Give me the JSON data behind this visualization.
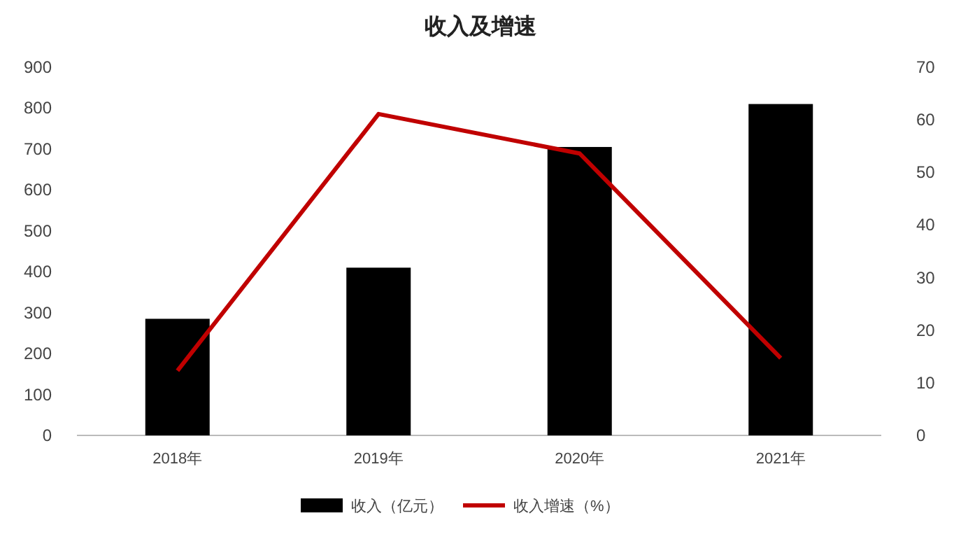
{
  "chart_data": {
    "type": "bar",
    "title": "收入及增速",
    "categories": [
      "2018年",
      "2019年",
      "2020年",
      "2021年"
    ],
    "series": [
      {
        "name": "收入（亿元）",
        "color": "#000000",
        "values": [
          285,
          410,
          705,
          810
        ]
      },
      {
        "name": "收入增速（%）",
        "type": "line",
        "axis": "y2",
        "color": "#c00000",
        "values": [
          12.3,
          61.1,
          53.6,
          14.7
        ]
      }
    ],
    "ylim": [
      0,
      900
    ],
    "yticks": [
      0,
      100,
      200,
      300,
      400,
      500,
      600,
      700,
      800,
      900
    ],
    "y2lim": [
      0,
      70
    ],
    "y2ticks": [
      0,
      10,
      20,
      30,
      40,
      50,
      60,
      70
    ],
    "grid": false,
    "legend": "bottom",
    "marker": "none",
    "line_style": "solid"
  }
}
